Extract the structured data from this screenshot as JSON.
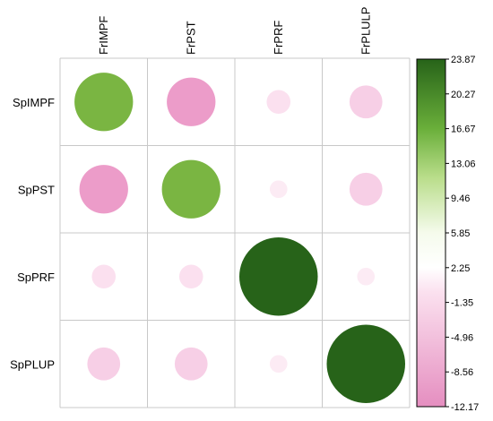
{
  "chart_data": {
    "type": "heatmap",
    "title": "",
    "columns": [
      "FrIMPF",
      "FrPST",
      "FrPRF",
      "FrPLULP"
    ],
    "rows": [
      "SpIMPF",
      "SpPST",
      "SpPRF",
      "SpPLUP"
    ],
    "values": [
      [
        13.3,
        -9.2,
        -2.2,
        -4.2
      ],
      [
        -9.2,
        13.3,
        -1.2,
        -4.2
      ],
      [
        -2.2,
        -2.2,
        23.87,
        -1.2
      ],
      [
        -4.2,
        -4.2,
        -1.2,
        23.87
      ]
    ],
    "value_range": [
      -12.17,
      23.87
    ],
    "color_scale": {
      "low": "#e58ec0",
      "mid": "#ffffff",
      "high": "#276319",
      "stops": [
        {
          "value": -12.17,
          "color": "#e58ec0"
        },
        {
          "value": -8.56,
          "color": "#ee9fcb"
        },
        {
          "value": -4.96,
          "color": "#f6c8e2"
        },
        {
          "value": -1.35,
          "color": "#fce8f3"
        },
        {
          "value": 0,
          "color": "#ffffff"
        },
        {
          "value": 2.25,
          "color": "#f7fbf1"
        },
        {
          "value": 5.85,
          "color": "#e6f5d0"
        },
        {
          "value": 9.46,
          "color": "#c5e39a"
        },
        {
          "value": 13.06,
          "color": "#7cb643"
        },
        {
          "value": 16.67,
          "color": "#5aa130"
        },
        {
          "value": 20.27,
          "color": "#3d7f23"
        },
        {
          "value": 23.87,
          "color": "#276319"
        }
      ]
    },
    "colorbar_ticks": [
      "23.87",
      "20.27",
      "16.67",
      "13.06",
      "9.46",
      "5.85",
      "2.25",
      "-1.35",
      "-4.96",
      "-8.56",
      "-12.17"
    ],
    "grid": true,
    "legend_position": "right"
  }
}
